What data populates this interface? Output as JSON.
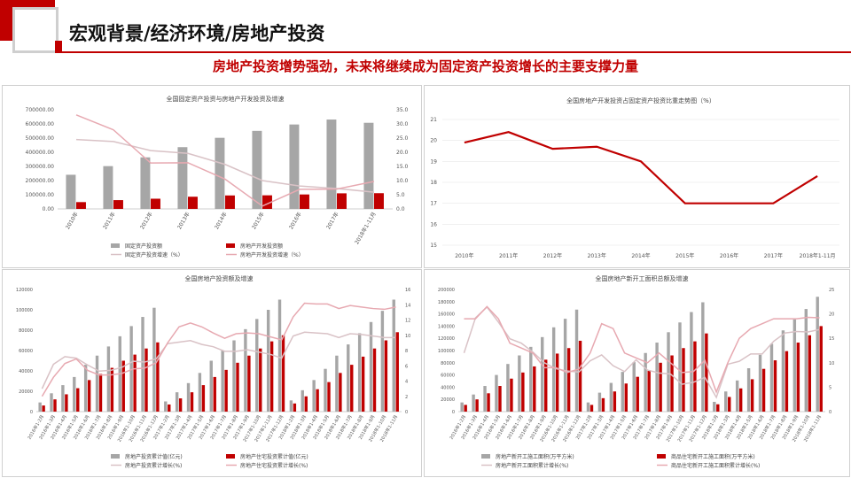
{
  "slide_title": "宏观背景/经济环境/房地产投资",
  "subtitle": "房地产投资增势强劲，未来将继续成为固定资产投资增长的主要支撑力量",
  "colors": {
    "accent": "#c00000",
    "gray_bar": "#a6a6a6",
    "line_gray": "#d9b8bd",
    "line_pink": "#e5a5ad"
  },
  "chart_data": [
    {
      "type": "bar",
      "title": "全国固定资产投资与房地产开发投资及增速",
      "categories": [
        "2010年",
        "2011年",
        "2012年",
        "2013年",
        "2014年",
        "2015年",
        "2016年",
        "2017年",
        "2018年1-11月"
      ],
      "ylim": [
        0,
        700000
      ],
      "y2lim": [
        0,
        35
      ],
      "yticks": [
        "0.00",
        "100000.00",
        "200000.00",
        "300000.00",
        "400000.00",
        "500000.00",
        "600000.00",
        "700000.00"
      ],
      "y2ticks": [
        "0.0",
        "5.0",
        "10.0",
        "15.0",
        "20.0",
        "25.0",
        "30.0",
        "35.0"
      ],
      "series": [
        {
          "name": "固定资产投资额",
          "kind": "bar",
          "color": "#a6a6a6",
          "values": [
            241000,
            302000,
            364000,
            436000,
            502000,
            551000,
            596000,
            631000,
            608000
          ]
        },
        {
          "name": "房地产开发投资额",
          "kind": "bar",
          "color": "#c00000",
          "values": [
            48000,
            62000,
            72000,
            86000,
            95000,
            96000,
            102000,
            110000,
            111000
          ]
        },
        {
          "name": "固定资产投资增速（%）",
          "kind": "line",
          "axis": "right",
          "color": "#d9c2c6",
          "values": [
            24.5,
            23.8,
            20.6,
            19.6,
            15.7,
            10.0,
            8.1,
            7.2,
            5.9
          ]
        },
        {
          "name": "房地产开发投资增速（%）",
          "kind": "line",
          "axis": "right",
          "color": "#e7a9b1",
          "values": [
            33.2,
            27.9,
            16.2,
            16.3,
            10.5,
            1.0,
            6.9,
            7.0,
            9.7
          ]
        }
      ]
    },
    {
      "type": "line",
      "title": "全国房地产开发投资占固定资产投资比重走势图（%）",
      "categories": [
        "2010年",
        "2011年",
        "2012年",
        "2013年",
        "2014年",
        "2015年",
        "2016年",
        "2017年",
        "2018年1-11月"
      ],
      "ylim": [
        15,
        21
      ],
      "yticks": [
        "15",
        "16",
        "17",
        "18",
        "19",
        "20",
        "21"
      ],
      "series": [
        {
          "name": "比重",
          "color": "#c00000",
          "values": [
            19.9,
            20.4,
            19.6,
            19.7,
            19.0,
            17.0,
            17.0,
            17.0,
            18.3
          ]
        }
      ]
    },
    {
      "type": "bar",
      "title": "全国房地产投资额及增速",
      "categories": [
        "2016年1-2月",
        "2016年1-3月",
        "2016年1-4月",
        "2016年1-5月",
        "2016年1-6月",
        "2016年1-7月",
        "2016年1-8月",
        "2016年1-9月",
        "2016年1-10月",
        "2016年1-11月",
        "2016年1-12月",
        "2017年1-2月",
        "2017年1-3月",
        "2017年1-4月",
        "2017年1-5月",
        "2017年1-6月",
        "2017年1-7月",
        "2017年1-8月",
        "2017年1-9月",
        "2017年1-10月",
        "2017年1-11月",
        "2017年1-12月",
        "2018年1-2月",
        "2018年1-3月",
        "2018年1-4月",
        "2018年1-5月",
        "2018年1-6月",
        "2018年1-7月",
        "2018年1-8月",
        "2018年1-9月",
        "2018年1-10月",
        "2018年1-11月"
      ],
      "ylim": [
        0,
        120000
      ],
      "y2lim": [
        0,
        16
      ],
      "yticks": [
        "0",
        "20000",
        "40000",
        "60000",
        "80000",
        "100000",
        "120000"
      ],
      "y2ticks": [
        "0",
        "2",
        "4",
        "6",
        "8",
        "10",
        "12",
        "14",
        "16"
      ],
      "series": [
        {
          "name": "房地产投资累计值(亿元)",
          "kind": "bar",
          "color": "#a6a6a6",
          "values": [
            9000,
            18000,
            26000,
            34000,
            46000,
            55000,
            64000,
            74000,
            84000,
            93000,
            102000,
            10000,
            19000,
            28000,
            38000,
            50000,
            60000,
            70000,
            81000,
            91000,
            100000,
            110000,
            11000,
            21000,
            31000,
            42000,
            55000,
            66000,
            77000,
            88000,
            99000,
            110000
          ]
        },
        {
          "name": "房地产住宅投资累计值(亿元)",
          "kind": "bar",
          "color": "#c00000",
          "values": [
            6000,
            12000,
            17000,
            23000,
            31000,
            37000,
            43000,
            50000,
            56000,
            62000,
            68000,
            7000,
            13000,
            19000,
            26000,
            34000,
            41000,
            48000,
            55000,
            62000,
            69000,
            75000,
            8000,
            15000,
            22000,
            29000,
            38000,
            46000,
            54000,
            62000,
            70000,
            78000
          ]
        },
        {
          "name": "房地产投资累计增长(%)",
          "kind": "line",
          "axis": "right",
          "color": "#d9c2c6",
          "values": [
            3.0,
            6.2,
            7.2,
            7.0,
            6.1,
            5.3,
            5.4,
            5.8,
            6.6,
            6.5,
            6.9,
            8.9,
            9.1,
            9.3,
            8.8,
            8.5,
            7.9,
            7.9,
            8.1,
            7.8,
            7.5,
            7.0,
            9.9,
            10.4,
            10.3,
            10.2,
            9.7,
            10.2,
            10.1,
            9.9,
            9.7,
            9.7
          ]
        },
        {
          "name": "房地产住宅投资累计增长(%)",
          "kind": "line",
          "axis": "right",
          "color": "#e7a9b1",
          "values": [
            2.0,
            4.5,
            6.3,
            6.9,
            5.4,
            4.8,
            4.8,
            5.0,
            5.6,
            5.7,
            6.4,
            9.0,
            11.1,
            11.6,
            11.1,
            10.3,
            9.6,
            10.2,
            10.3,
            10.2,
            9.8,
            9.4,
            12.4,
            14.2,
            14.1,
            14.1,
            13.5,
            13.9,
            13.7,
            13.5,
            13.4,
            13.7
          ]
        }
      ]
    },
    {
      "type": "bar",
      "title": "全国房地产新开工面积总额及增速",
      "categories": [
        "2016年1-2月",
        "2016年1-3月",
        "2016年1-4月",
        "2016年1-5月",
        "2016年1-6月",
        "2016年1-7月",
        "2016年1-8月",
        "2016年1-9月",
        "2016年1-10月",
        "2016年1-11月",
        "2016年1-12月",
        "2017年1-2月",
        "2017年1-3月",
        "2017年1-4月",
        "2017年1-5月",
        "2017年1-6月",
        "2017年1-7月",
        "2017年1-8月",
        "2017年1-9月",
        "2017年1-10月",
        "2017年1-11月",
        "2017年1-12月",
        "2018年1-2月",
        "2018年1-3月",
        "2018年1-4月",
        "2018年1-5月",
        "2018年1-6月",
        "2018年1-7月",
        "2018年1-8月",
        "2018年1-9月",
        "2018年1-10月",
        "2018年1-11月"
      ],
      "ylim": [
        0,
        200000
      ],
      "y2lim": [
        0,
        25
      ],
      "yticks": [
        "0",
        "20000",
        "40000",
        "60000",
        "80000",
        "100000",
        "120000",
        "140000",
        "160000",
        "180000",
        "200000"
      ],
      "y2ticks": [
        "0",
        "5",
        "10",
        "15",
        "20",
        "25"
      ],
      "series": [
        {
          "name": "房地产新开工施工面积(万平方米)",
          "kind": "bar",
          "color": "#a6a6a6",
          "values": [
            15000,
            28000,
            42000,
            60000,
            78000,
            92000,
            106000,
            122000,
            138000,
            152000,
            167000,
            15000,
            31000,
            47000,
            65000,
            81000,
            96000,
            113000,
            130000,
            146000,
            163000,
            179000,
            16000,
            33000,
            51000,
            71000,
            93000,
            111000,
            133000,
            151000,
            168000,
            188000
          ]
        },
        {
          "name": "商品住宅新开工施工面积(万平方米)",
          "kind": "bar",
          "color": "#c00000",
          "values": [
            11000,
            20000,
            30000,
            42000,
            54000,
            64000,
            74000,
            85000,
            95000,
            104000,
            116000,
            11000,
            22000,
            33000,
            46000,
            57000,
            68000,
            80000,
            92000,
            104000,
            115000,
            128000,
            12000,
            24000,
            38000,
            53000,
            70000,
            84000,
            99000,
            113000,
            125000,
            140000
          ]
        },
        {
          "name": "房地产新开工面积累计增长(%)",
          "kind": "line",
          "axis": "right",
          "color": "#d9c2c6",
          "values": [
            12.0,
            19.2,
            21.4,
            18.3,
            14.9,
            14.0,
            12.2,
            10.0,
            8.8,
            8.3,
            8.1,
            10.4,
            11.6,
            9.4,
            8.2,
            10.6,
            8.5,
            7.9,
            7.7,
            5.6,
            6.0,
            7.0,
            2.9,
            9.7,
            10.3,
            11.8,
            11.8,
            14.4,
            16.1,
            16.4,
            16.3,
            16.8
          ]
        },
        {
          "name": "商品住宅新开工施工面积累计增长(%)",
          "kind": "line",
          "axis": "right",
          "color": "#e7a9b1",
          "values": [
            19.0,
            19.0,
            21.5,
            19.0,
            14.0,
            13.0,
            12.0,
            9.0,
            9.0,
            8.0,
            8.7,
            12.0,
            18.0,
            17.0,
            12.0,
            11.0,
            10.0,
            12.0,
            10.0,
            8.0,
            8.2,
            10.5,
            4.0,
            10.0,
            15.0,
            17.0,
            18.0,
            19.0,
            19.0,
            19.0,
            19.3,
            19.2
          ]
        }
      ]
    }
  ]
}
